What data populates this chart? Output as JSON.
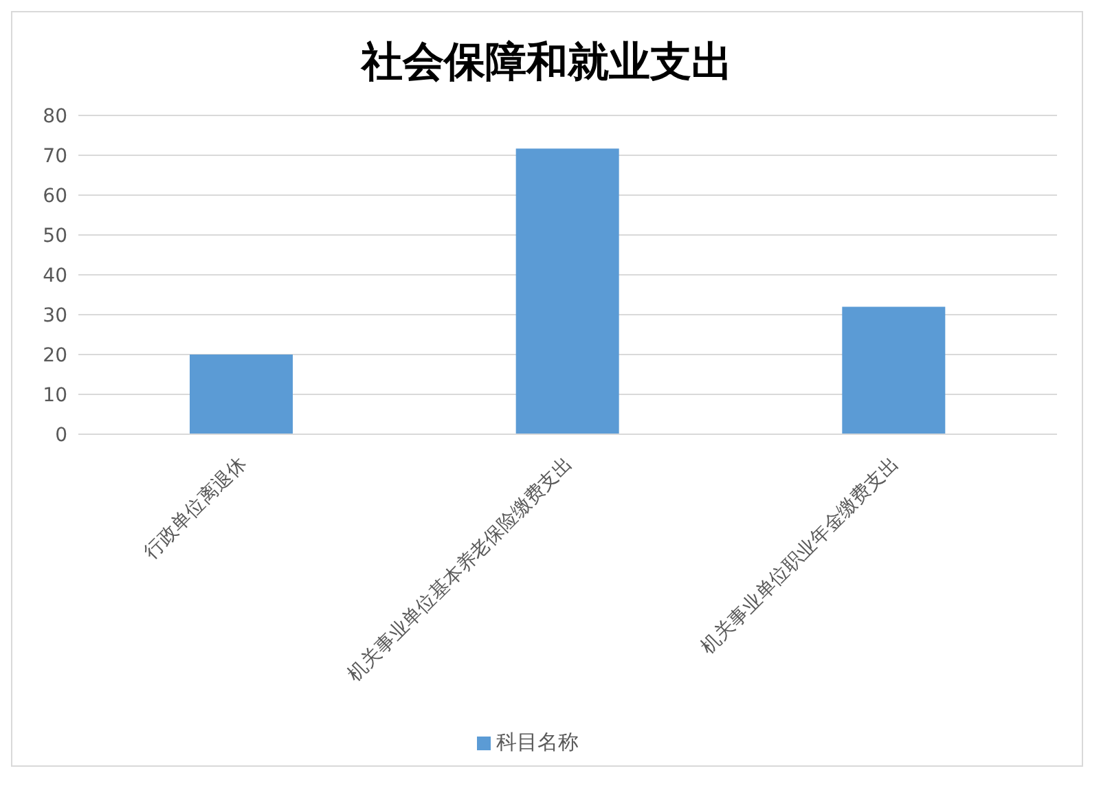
{
  "chart_data": {
    "type": "bar",
    "title": "社会保障和就业支出",
    "categories": [
      "行政单位离退休",
      "机关事业单位基本养老保险缴费支出",
      "机关事业单位职业年金缴费支出"
    ],
    "series": [
      {
        "name": "科目名称",
        "color": "#5b9bd5",
        "values": [
          20,
          71.7,
          32
        ]
      }
    ],
    "ylim": [
      0,
      80
    ],
    "yticks": [
      0,
      10,
      20,
      30,
      40,
      50,
      60,
      70,
      80
    ],
    "grid": "y",
    "legend": "bottom"
  }
}
